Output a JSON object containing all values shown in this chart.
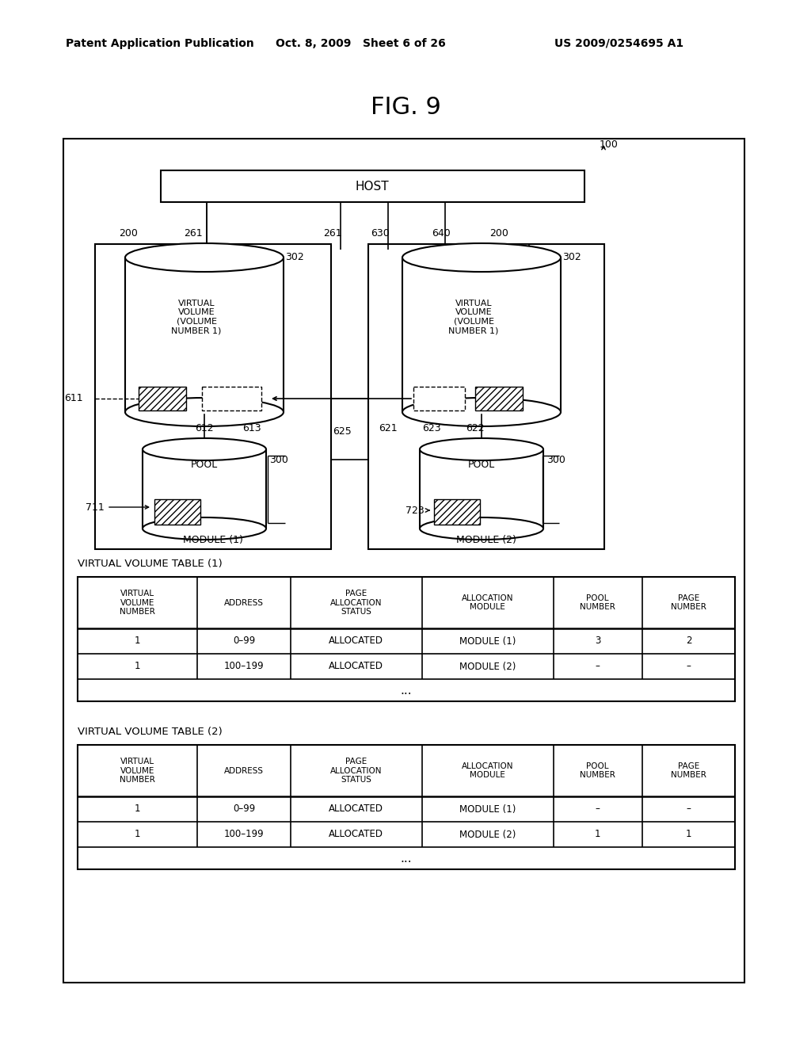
{
  "title": "FIG. 9",
  "header_left": "Patent Application Publication",
  "header_mid": "Oct. 8, 2009   Sheet 6 of 26",
  "header_right": "US 2009/0254695 A1",
  "bg_color": "#ffffff",
  "table1_title": "VIRTUAL VOLUME TABLE (1)",
  "table2_title": "VIRTUAL VOLUME TABLE (2)",
  "table_headers": [
    "VIRTUAL\nVOLUME\nNUMBER",
    "ADDRESS",
    "PAGE\nALLOCATION\nSTATUS",
    "ALLOCATION\nMODULE",
    "POOL\nNUMBER",
    "PAGE\nNUMBER"
  ],
  "table1_rows": [
    [
      "1",
      "0–99",
      "ALLOCATED",
      "MODULE (1)",
      "3",
      "2"
    ],
    [
      "1",
      "100–199",
      "ALLOCATED",
      "MODULE (2)",
      "–",
      "–"
    ]
  ],
  "table2_rows": [
    [
      "1",
      "0–99",
      "ALLOCATED",
      "MODULE (1)",
      "–",
      "–"
    ],
    [
      "1",
      "100–199",
      "ALLOCATED",
      "MODULE (2)",
      "1",
      "1"
    ]
  ]
}
